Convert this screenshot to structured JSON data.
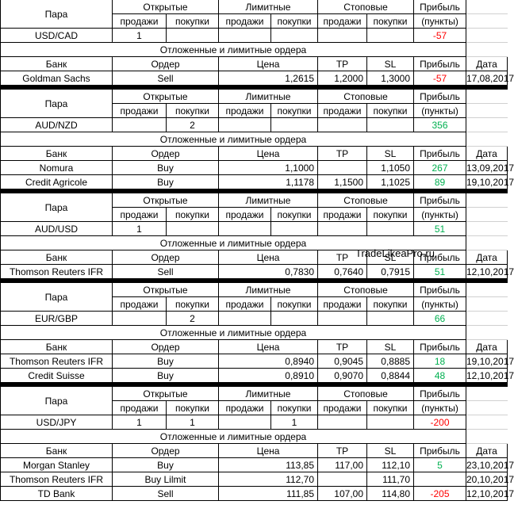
{
  "headers": {
    "pair": "Пара",
    "open": "Открытые",
    "limit": "Лимитные",
    "stop": "Стоповые",
    "profit": "Прибыль",
    "sell": "продажи",
    "buy": "покупки",
    "points": "(пункты)",
    "pending": "Отложенные и лимитные ордера",
    "bank": "Банк",
    "order": "Ордер",
    "price": "Цена",
    "tp": "TP",
    "sl": "SL",
    "date": "Дата"
  },
  "watermark": "TradeLikeaPro.ru",
  "blocks": [
    {
      "pair": "USD/CAD",
      "open_sell": "1",
      "open_buy": "",
      "limit_sell": "",
      "limit_buy": "",
      "stop_sell": "",
      "stop_buy": "",
      "profit": "-57",
      "profit_color": "#ff0000",
      "orders": [
        {
          "bank": "Goldman Sachs",
          "order": "Sell",
          "price": "1,2615",
          "tp": "1,2000",
          "sl": "1,3000",
          "profit": "-57",
          "profit_color": "#ff0000",
          "date": "17,08,2017"
        }
      ]
    },
    {
      "pair": "AUD/NZD",
      "open_sell": "",
      "open_buy": "2",
      "limit_sell": "",
      "limit_buy": "",
      "stop_sell": "",
      "stop_buy": "",
      "profit": "356",
      "profit_color": "#00b050",
      "orders": [
        {
          "bank": "Nomura",
          "order": "Buy",
          "price": "1,1000",
          "tp": "",
          "sl": "1,1050",
          "profit": "267",
          "profit_color": "#00b050",
          "date": "13,09,2017"
        },
        {
          "bank": "Credit Agricole",
          "order": "Buy",
          "price": "1,1178",
          "tp": "1,1500",
          "sl": "1,1025",
          "profit": "89",
          "profit_color": "#00b050",
          "date": "19,10,2017"
        }
      ]
    },
    {
      "pair": "AUD/USD",
      "open_sell": "1",
      "open_buy": "",
      "limit_sell": "",
      "limit_buy": "",
      "stop_sell": "",
      "stop_buy": "",
      "profit": "51",
      "profit_color": "#00b050",
      "orders": [
        {
          "bank": "Thomson Reuters IFR",
          "order": "Sell",
          "price": "0,7830",
          "tp": "0,7640",
          "sl": "0,7915",
          "profit": "51",
          "profit_color": "#00b050",
          "date": "12,10,2017"
        }
      ]
    },
    {
      "pair": "EUR/GBP",
      "open_sell": "",
      "open_buy": "2",
      "limit_sell": "",
      "limit_buy": "",
      "stop_sell": "",
      "stop_buy": "",
      "profit": "66",
      "profit_color": "#00b050",
      "orders": [
        {
          "bank": "Thomson Reuters IFR",
          "order": "Buy",
          "price": "0,8940",
          "tp": "0,9045",
          "sl": "0,8885",
          "profit": "18",
          "profit_color": "#00b050",
          "date": "19,10,2017"
        },
        {
          "bank": "Credit Suisse",
          "order": "Buy",
          "price": "0,8910",
          "tp": "0,9070",
          "sl": "0,8844",
          "profit": "48",
          "profit_color": "#00b050",
          "date": "12,10,2017"
        }
      ]
    },
    {
      "pair": "USD/JPY",
      "open_sell": "1",
      "open_buy": "1",
      "limit_sell": "",
      "limit_buy": "1",
      "stop_sell": "",
      "stop_buy": "",
      "profit": "-200",
      "profit_color": "#ff0000",
      "orders": [
        {
          "bank": "Morgan Stanley",
          "order": "Buy",
          "price": "113,85",
          "tp": "117,00",
          "sl": "112,10",
          "profit": "5",
          "profit_color": "#00b050",
          "date": "23,10,2017"
        },
        {
          "bank": "Thomson Reuters IFR",
          "order": "Buy Lilmit",
          "price": "112,70",
          "tp": "",
          "sl": "111,70",
          "profit": "",
          "profit_color": "#000000",
          "date": "20,10,2017"
        },
        {
          "bank": "TD Bank",
          "order": "Sell",
          "price": "111,85",
          "tp": "107,00",
          "sl": "114,80",
          "profit": "-205",
          "profit_color": "#ff0000",
          "date": "12,10,2017"
        }
      ]
    }
  ]
}
